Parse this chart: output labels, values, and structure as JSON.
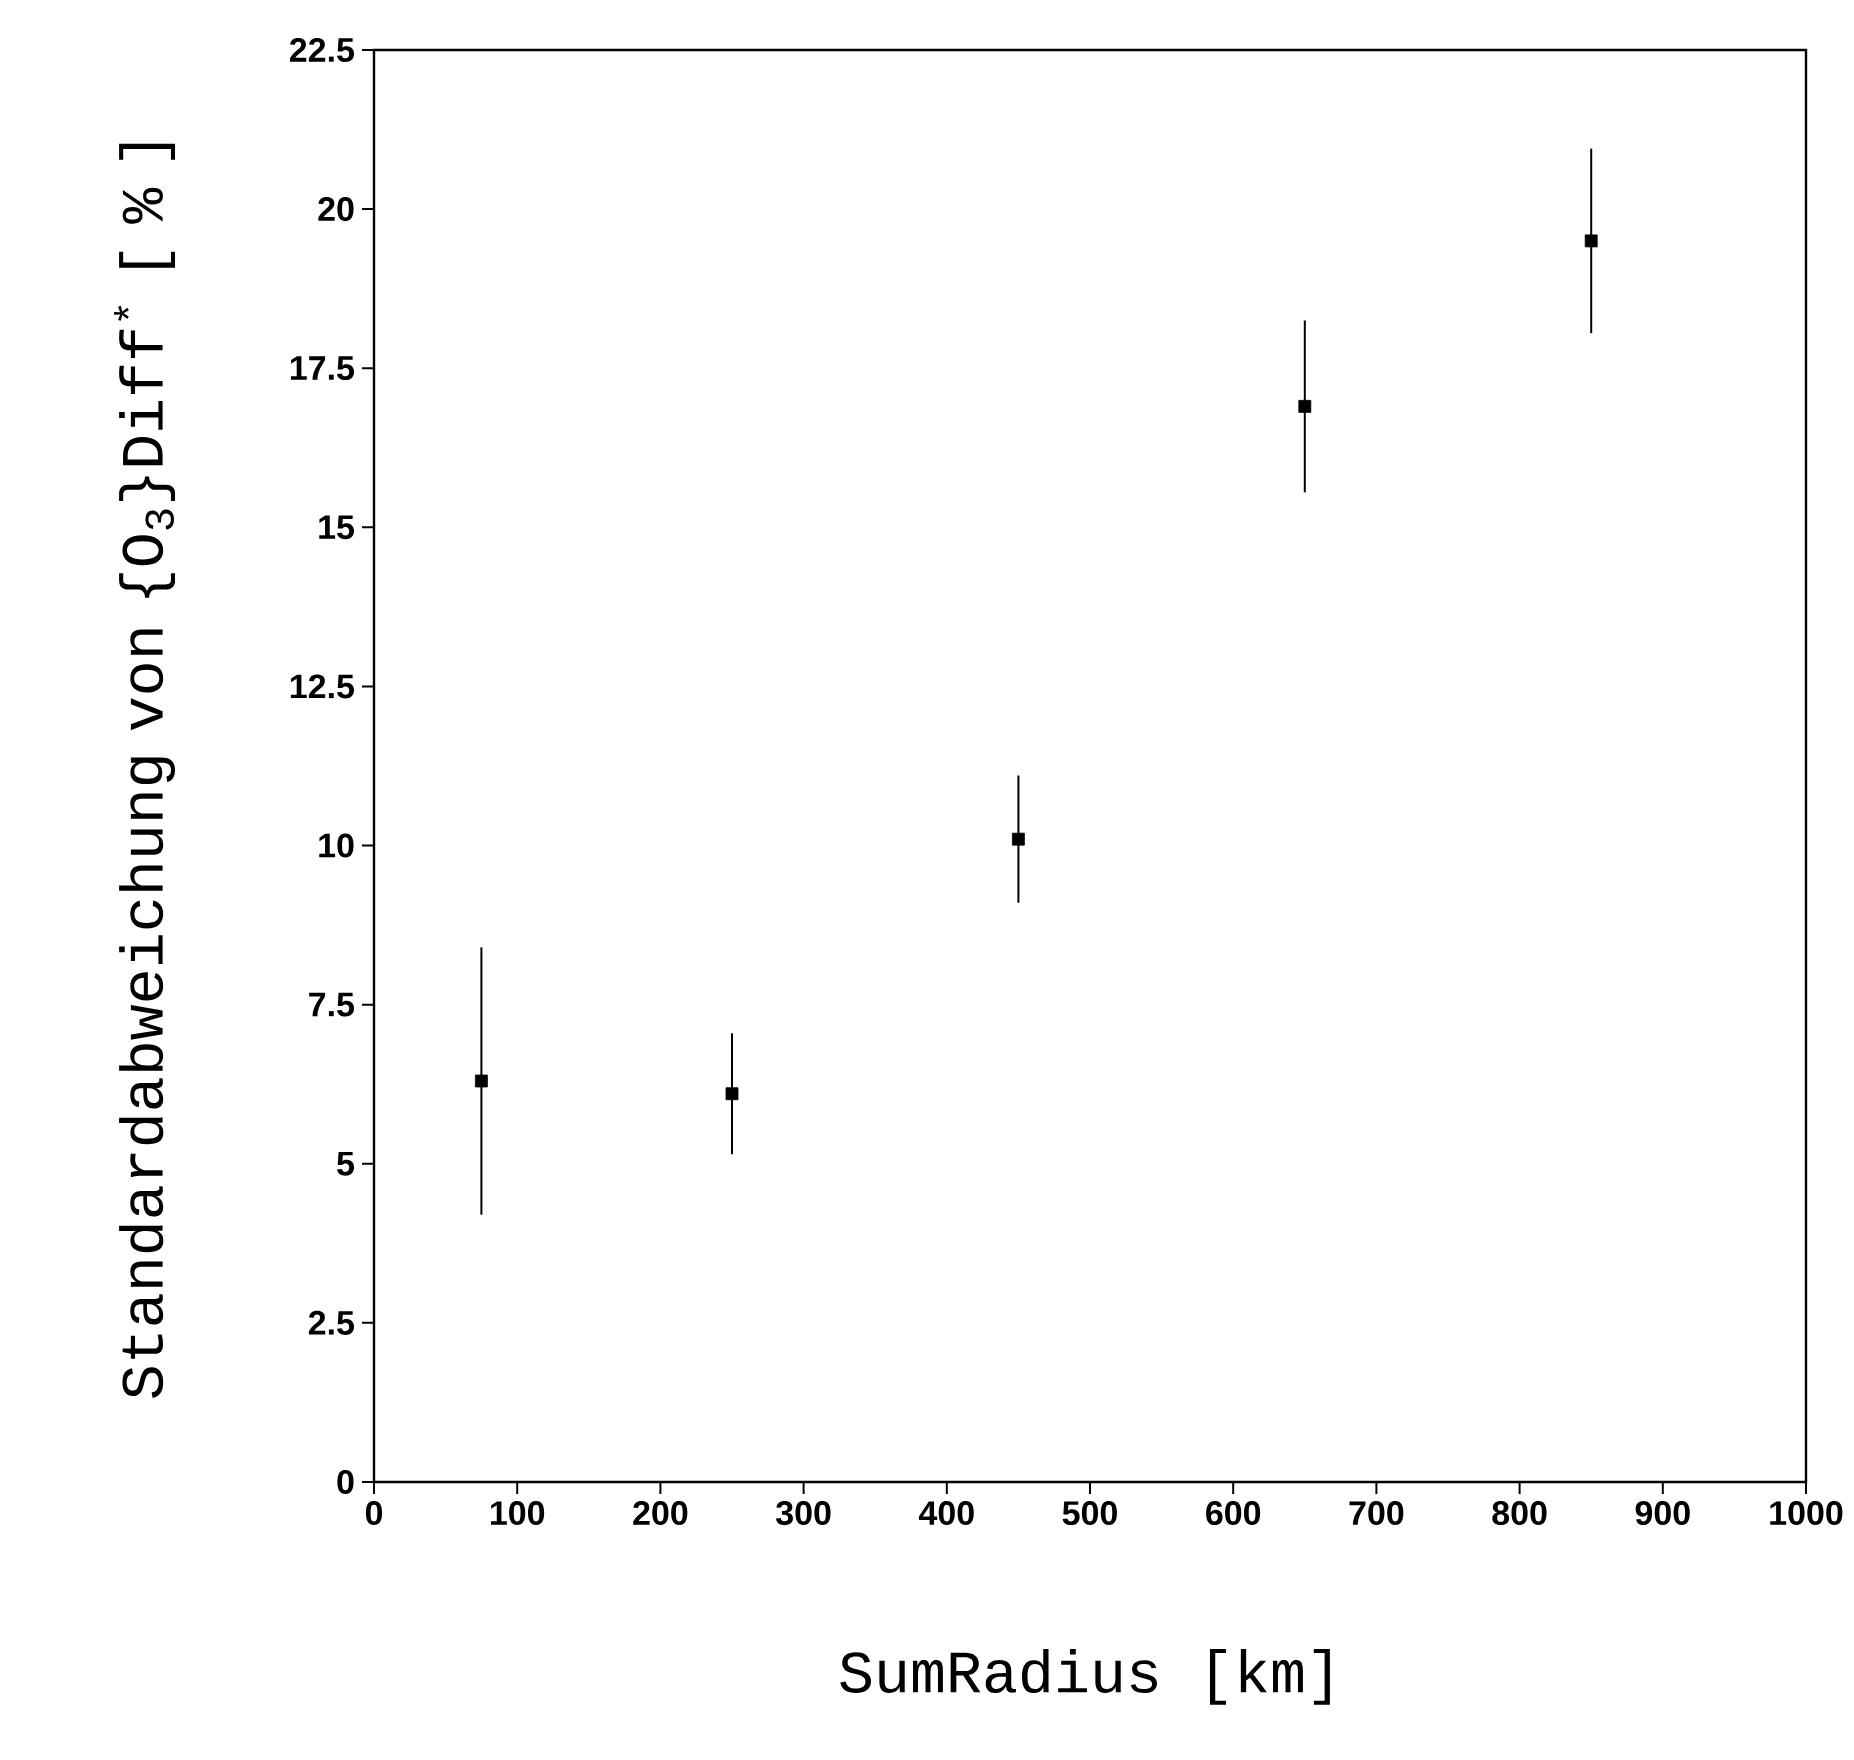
{
  "chart_data": {
    "type": "scatter",
    "xlabel": "SumRadius [km]",
    "ylabel": "Standardabweichung von {O$_{3}$}Diff$^{*}$ [ % ]",
    "x": [
      75,
      250,
      450,
      650,
      850
    ],
    "values": [
      6.3,
      6.1,
      10.1,
      16.9,
      19.5
    ],
    "errors": [
      2.1,
      0.95,
      1,
      1.35,
      1.45
    ],
    "color": "#000000",
    "marker": "square",
    "grid": false,
    "xlim": [
      0,
      1000
    ],
    "xticks": [
      0,
      100,
      200,
      300,
      400,
      500,
      600,
      700,
      800,
      900,
      1000
    ],
    "ylim": [
      0,
      22.5
    ],
    "yticks": [
      0,
      2.5,
      5,
      7.5,
      10,
      12.5,
      15,
      17.5,
      20,
      22.5
    ]
  }
}
